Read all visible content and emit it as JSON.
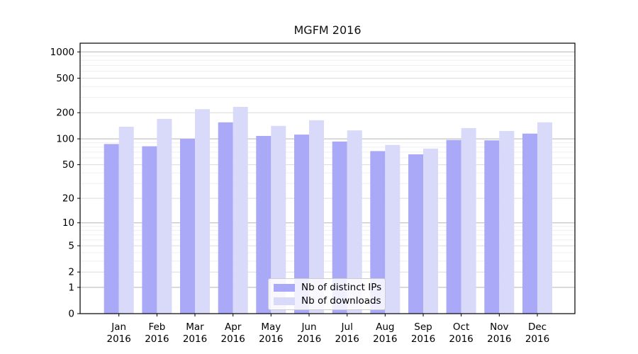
{
  "chart_data": {
    "type": "bar",
    "title": "MGFM 2016",
    "categories": [
      "Jan",
      "Feb",
      "Mar",
      "Apr",
      "May",
      "Jun",
      "Jul",
      "Aug",
      "Sep",
      "Oct",
      "Nov",
      "Dec"
    ],
    "x_year": "2016",
    "series": [
      {
        "name": "Nb of distinct IPs",
        "color": "#a9a9f8",
        "values": [
          87,
          82,
          100,
          155,
          108,
          112,
          93,
          72,
          66,
          97,
          96,
          115
        ]
      },
      {
        "name": "Nb of downloads",
        "color": "#d9d9f9",
        "values": [
          138,
          170,
          220,
          234,
          141,
          164,
          125,
          85,
          77,
          133,
          123,
          155
        ]
      }
    ],
    "y_scale": "log10(value+1)",
    "y_ticks": [
      1000,
      500,
      200,
      100,
      50,
      20,
      10,
      5,
      2,
      1,
      0
    ],
    "ylim": [
      0,
      1260
    ],
    "grid": "on",
    "legend_position": "lower-center-inside",
    "grid_colors": {
      "major": "#b5b5b5",
      "mid": "#dcdcdc",
      "minor": "#efefef"
    }
  }
}
